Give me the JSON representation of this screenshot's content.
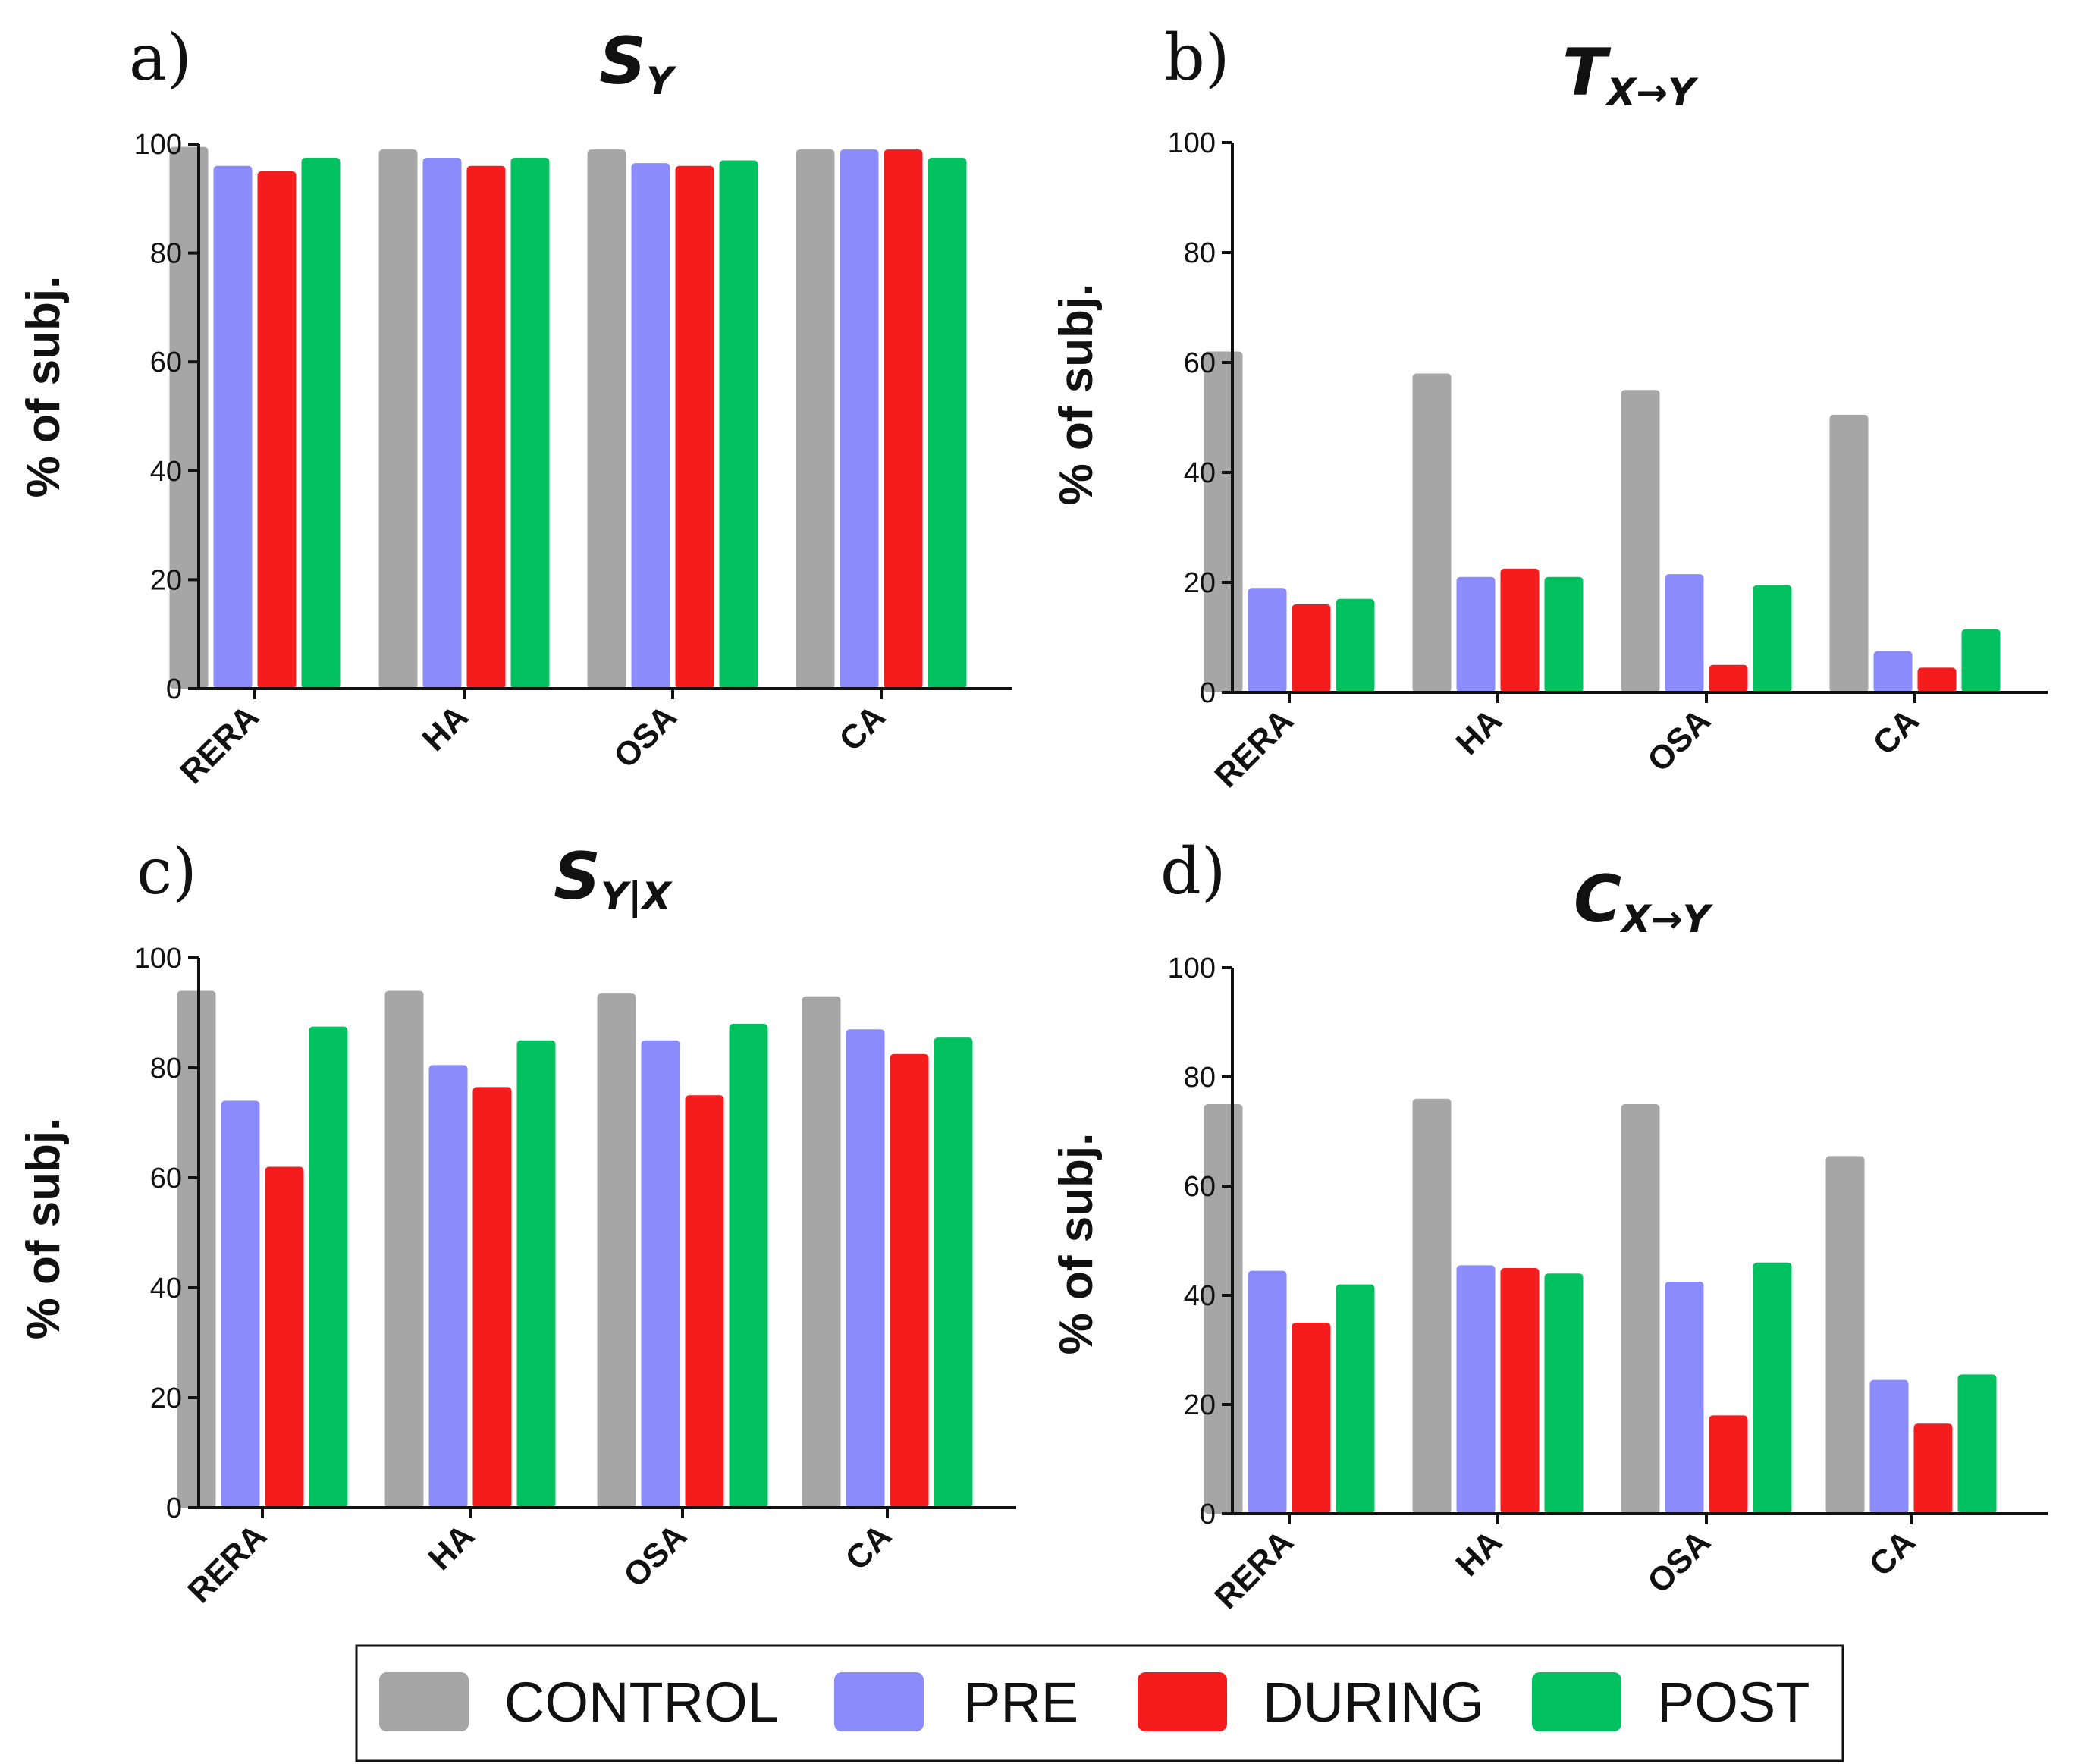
{
  "legend": [
    {
      "name": "CONTROL",
      "color": "#a6a6a6"
    },
    {
      "name": "PRE",
      "color": "#8b8bfb"
    },
    {
      "name": "DURING",
      "color": "#f41c1c"
    },
    {
      "name": "POST",
      "color": "#00c060"
    }
  ],
  "chart_data": [
    {
      "type": "bar",
      "panel": "a)",
      "title_main": "S",
      "title_sub": "Y",
      "ylabel": "% of subj.",
      "xlabel": "",
      "ylim": [
        0,
        100
      ],
      "yticks": [
        "0",
        "20",
        "40",
        "60",
        "80",
        "100"
      ],
      "categories": [
        "RERA",
        "HA",
        "OSA",
        "CA"
      ],
      "series": [
        {
          "name": "CONTROL",
          "values": [
            99.5,
            99,
            99,
            99
          ]
        },
        {
          "name": "PRE",
          "values": [
            96,
            97.5,
            96.5,
            99
          ]
        },
        {
          "name": "DURING",
          "values": [
            95,
            96,
            96,
            99
          ]
        },
        {
          "name": "POST",
          "values": [
            97.5,
            97.5,
            97,
            97.5
          ]
        }
      ]
    },
    {
      "type": "bar",
      "panel": "b)",
      "title_main": "T",
      "title_sub": "X→Y",
      "ylabel": "% of subj.",
      "xlabel": "",
      "ylim": [
        0,
        100
      ],
      "yticks": [
        "0",
        "20",
        "40",
        "60",
        "80",
        "100"
      ],
      "categories": [
        "RERA",
        "HA",
        "OSA",
        "CA"
      ],
      "series": [
        {
          "name": "CONTROL",
          "values": [
            62,
            58,
            55,
            50.5
          ]
        },
        {
          "name": "PRE",
          "values": [
            19,
            21,
            21.5,
            7.5
          ]
        },
        {
          "name": "DURING",
          "values": [
            16,
            22.5,
            5,
            4.5
          ]
        },
        {
          "name": "POST",
          "values": [
            17,
            21,
            19.5,
            11.5
          ]
        }
      ]
    },
    {
      "type": "bar",
      "panel": "c)",
      "title_main": "S",
      "title_sub": "Y|X",
      "ylabel": "% of subj.",
      "xlabel": "",
      "ylim": [
        0,
        100
      ],
      "yticks": [
        "0",
        "20",
        "40",
        "60",
        "80",
        "100"
      ],
      "categories": [
        "RERA",
        "HA",
        "OSA",
        "CA"
      ],
      "series": [
        {
          "name": "CONTROL",
          "values": [
            94,
            94,
            93.5,
            93
          ]
        },
        {
          "name": "PRE",
          "values": [
            74,
            80.5,
            85,
            87
          ]
        },
        {
          "name": "DURING",
          "values": [
            62,
            76.5,
            75,
            82.5
          ]
        },
        {
          "name": "POST",
          "values": [
            87.5,
            85,
            88,
            85.5
          ]
        }
      ]
    },
    {
      "type": "bar",
      "panel": "d)",
      "title_main": "C",
      "title_sub": "X→Y",
      "ylabel": "% of subj.",
      "xlabel": "",
      "ylim": [
        0,
        100
      ],
      "yticks": [
        "0",
        "20",
        "40",
        "60",
        "80",
        "100"
      ],
      "categories": [
        "RERA",
        "HA",
        "OSA",
        "CA"
      ],
      "series": [
        {
          "name": "CONTROL",
          "values": [
            75,
            76,
            75,
            65.5
          ]
        },
        {
          "name": "PRE",
          "values": [
            44.5,
            45.5,
            42.5,
            24.5
          ]
        },
        {
          "name": "DURING",
          "values": [
            35,
            45,
            18,
            16.5
          ]
        },
        {
          "name": "POST",
          "values": [
            42,
            44,
            46,
            25.5
          ]
        }
      ]
    }
  ]
}
